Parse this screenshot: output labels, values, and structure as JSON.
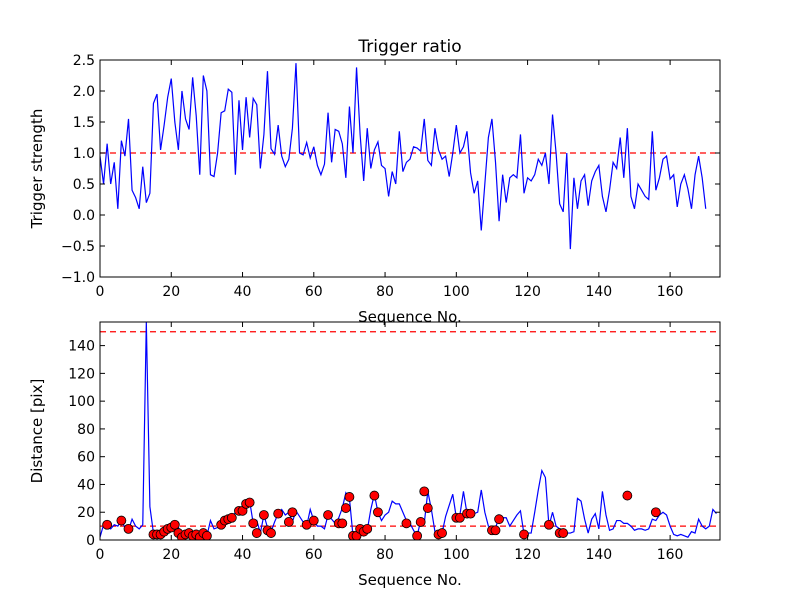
{
  "chart_data": [
    {
      "type": "line",
      "title": "Trigger ratio",
      "xlabel": "Sequence No.",
      "ylabel": "Trigger strength",
      "xlim": [
        0,
        174
      ],
      "ylim": [
        -1.0,
        2.5
      ],
      "xticks": [
        0,
        20,
        40,
        60,
        80,
        100,
        120,
        140,
        160
      ],
      "xtick_labels": [
        "0",
        "20",
        "40",
        "60",
        "80",
        "100",
        "120",
        "140",
        "160"
      ],
      "yticks": [
        -1.0,
        -0.5,
        0.0,
        0.5,
        1.0,
        1.5,
        2.0,
        2.5
      ],
      "ytick_labels": [
        "−1.0",
        "−0.5",
        "0.0",
        "0.5",
        "1.0",
        "1.5",
        "2.0",
        "2.5"
      ],
      "colors": {
        "line": "#0000ff",
        "threshold": "#ff0000"
      },
      "thresholds": [
        1.0
      ],
      "series": [
        {
          "name": "trigger strength",
          "values": [
            0.95,
            0.5,
            1.15,
            0.5,
            0.85,
            0.1,
            1.2,
            0.95,
            1.55,
            0.4,
            0.28,
            0.1,
            0.78,
            0.2,
            0.35,
            1.8,
            1.95,
            1.05,
            1.45,
            1.9,
            2.2,
            1.5,
            1.05,
            2.0,
            1.55,
            1.38,
            2.22,
            1.6,
            0.65,
            2.25,
            2.0,
            0.65,
            0.62,
            1.0,
            1.65,
            1.68,
            2.03,
            1.98,
            0.65,
            1.85,
            1.05,
            1.9,
            1.25,
            1.88,
            1.78,
            0.75,
            1.3,
            2.32,
            1.07,
            0.98,
            1.45,
            0.95,
            0.78,
            0.9,
            1.4,
            2.45,
            1.0,
            0.97,
            1.17,
            0.92,
            1.1,
            0.8,
            0.65,
            0.82,
            1.65,
            0.85,
            1.38,
            1.35,
            1.15,
            0.6,
            1.75,
            1.0,
            2.38,
            1.3,
            0.55,
            1.4,
            0.75,
            1.05,
            1.18,
            0.8,
            0.75,
            0.3,
            0.7,
            0.5,
            1.35,
            0.7,
            0.85,
            0.9,
            1.1,
            1.08,
            1.03,
            1.55,
            0.88,
            0.8,
            1.4,
            1.05,
            0.9,
            0.95,
            0.62,
            1.0,
            1.45,
            1.0,
            1.1,
            1.35,
            0.68,
            0.35,
            0.55,
            -0.25,
            0.5,
            1.25,
            1.55,
            0.85,
            -0.1,
            0.65,
            0.2,
            0.6,
            0.65,
            0.6,
            1.3,
            0.35,
            0.6,
            0.55,
            0.65,
            0.9,
            0.8,
            1.0,
            0.5,
            1.62,
            1.0,
            0.18,
            0.05,
            1.0,
            -0.55,
            0.6,
            0.1,
            0.55,
            0.65,
            0.15,
            0.55,
            0.7,
            0.8,
            0.3,
            0.05,
            0.4,
            0.85,
            0.75,
            1.25,
            0.6,
            1.4,
            0.3,
            0.1,
            0.5,
            0.4,
            0.3,
            0.25,
            1.35,
            0.4,
            0.6,
            0.9,
            0.95,
            0.58,
            0.65,
            0.13,
            0.5,
            0.65,
            0.42,
            0.1,
            0.65,
            0.95,
            0.6,
            0.1
          ]
        }
      ]
    },
    {
      "type": "line",
      "title": "",
      "xlabel": "Sequence No.",
      "ylabel": "Distance [pix]",
      "xlim": [
        0,
        174
      ],
      "ylim": [
        0,
        157
      ],
      "xticks": [
        0,
        20,
        40,
        60,
        80,
        100,
        120,
        140,
        160
      ],
      "xtick_labels": [
        "0",
        "20",
        "40",
        "60",
        "80",
        "100",
        "120",
        "140",
        "160"
      ],
      "yticks": [
        0,
        20,
        40,
        60,
        80,
        100,
        120,
        140
      ],
      "ytick_labels": [
        "0",
        "20",
        "40",
        "60",
        "80",
        "100",
        "120",
        "140"
      ],
      "colors": {
        "line": "#0000ff",
        "threshold": "#ff0000",
        "marker": "#ff0000",
        "marker_edge": "#000000"
      },
      "thresholds": [
        150,
        10
      ],
      "series": [
        {
          "name": "distance",
          "values": [
            2,
            11,
            9,
            8,
            11,
            10,
            14,
            9,
            7,
            15,
            10,
            8,
            11,
            157,
            24,
            5,
            5,
            5,
            6,
            8,
            8,
            11,
            9,
            5,
            4,
            6,
            3,
            3,
            5,
            3,
            3,
            14,
            8,
            9,
            11,
            13,
            15,
            16,
            20,
            22,
            22,
            24,
            28,
            12,
            14,
            5,
            18,
            9,
            6,
            13,
            19,
            22,
            18,
            20,
            13,
            21,
            17,
            13,
            10,
            22,
            14,
            10,
            10,
            8,
            18,
            15,
            12,
            16,
            23,
            34,
            30,
            3,
            3,
            8,
            6,
            7,
            22,
            33,
            20,
            14,
            18,
            20,
            28,
            26,
            26,
            20,
            14,
            12,
            7,
            3,
            14,
            12,
            35,
            22,
            6,
            6,
            5,
            17,
            25,
            33,
            16,
            18,
            35,
            19,
            17,
            19,
            20,
            36,
            20,
            10,
            9,
            8,
            18,
            16,
            16,
            10,
            14,
            18,
            21,
            4,
            5,
            5,
            20,
            36,
            50,
            45,
            10,
            20,
            10,
            8,
            5,
            5,
            5,
            6,
            30,
            28,
            15,
            5,
            15,
            19,
            8,
            35,
            18,
            7,
            8,
            14,
            14,
            12,
            12,
            10,
            7,
            8,
            8,
            7,
            8,
            15,
            14,
            18,
            20,
            18,
            10,
            4,
            3,
            4,
            3,
            2,
            6,
            5,
            15,
            10,
            8,
            10,
            22,
            19
          ]
        },
        {
          "name": "flagged points",
          "indices": [
            2,
            6,
            8,
            15,
            16,
            17,
            18,
            19,
            20,
            21,
            22,
            23,
            24,
            25,
            26,
            27,
            28,
            29,
            30,
            34,
            35,
            36,
            37,
            39,
            40,
            41,
            42,
            43,
            44,
            46,
            47,
            48,
            50,
            53,
            54,
            58,
            60,
            64,
            67,
            68,
            69,
            70,
            71,
            72,
            73,
            74,
            75,
            77,
            78,
            86,
            89,
            90,
            91,
            92,
            95,
            96,
            100,
            101,
            103,
            104,
            110,
            111,
            112,
            119,
            126,
            129,
            130,
            148,
            156
          ],
          "values": [
            11,
            14,
            8,
            4,
            4,
            4,
            6,
            8,
            9,
            11,
            5,
            2,
            4,
            5,
            3,
            4,
            2,
            5,
            3,
            11,
            14,
            15,
            16,
            21,
            21,
            26,
            27,
            12,
            5,
            18,
            7,
            5,
            19,
            13,
            20,
            11,
            14,
            18,
            12,
            12,
            23,
            31,
            3,
            3,
            8,
            6,
            8,
            32,
            20,
            12,
            3,
            13,
            35,
            23,
            4,
            5,
            16,
            16,
            19,
            19,
            7,
            7,
            15,
            4,
            11,
            5,
            5,
            32,
            20
          ]
        }
      ]
    }
  ]
}
